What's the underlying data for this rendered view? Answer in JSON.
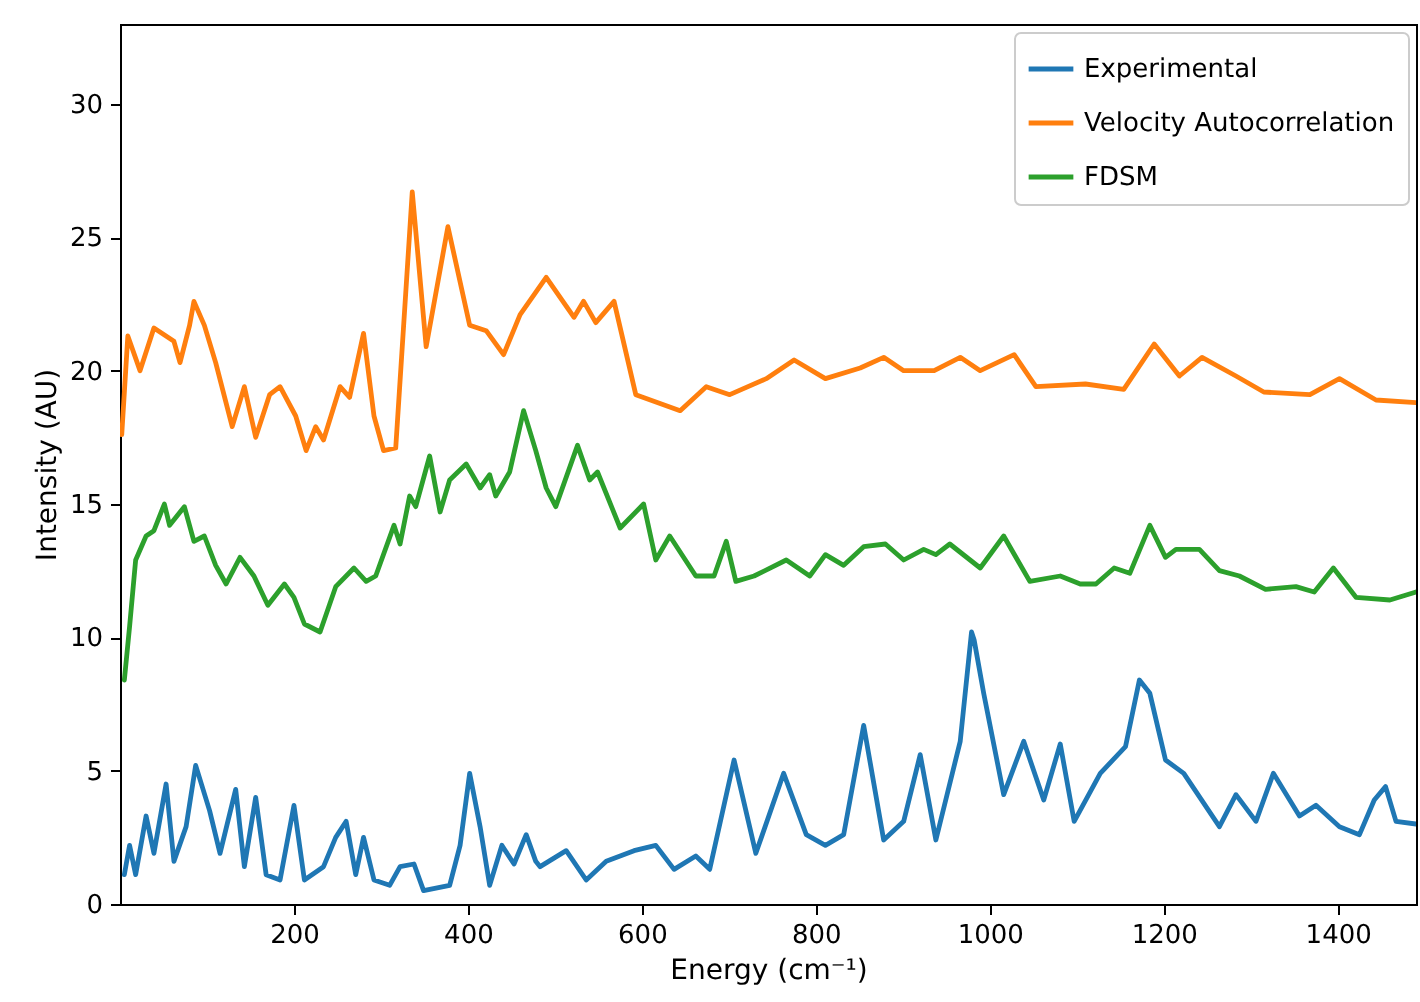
{
  "chart_data": {
    "type": "line",
    "xlabel": "Energy (cm⁻¹)",
    "ylabel": "Intensity (AU)",
    "xlim": [
      0,
      1490
    ],
    "xticks": [
      200,
      400,
      600,
      800,
      1000,
      1200,
      1400
    ],
    "ylim": [
      0,
      33
    ],
    "yticks": [
      0,
      5,
      10,
      15,
      20,
      25,
      30
    ],
    "legend": "top right",
    "grid": false,
    "line_style": "solid",
    "series": [
      {
        "name": "Experimental",
        "color": "#1f77b4",
        "x": [
          5,
          11,
          18,
          30,
          39,
          53,
          62,
          76,
          87,
          103,
          115,
          133,
          143,
          156,
          168,
          184,
          200,
          212,
          234,
          248,
          260,
          271,
          280,
          292,
          310,
          322,
          338,
          349,
          379,
          391,
          402,
          414,
          425,
          439,
          453,
          467,
          478,
          483,
          513,
          536,
          559,
          591,
          616,
          637,
          662,
          678,
          706,
          731,
          763,
          789,
          811,
          832,
          855,
          878,
          901,
          920,
          938,
          966,
          979,
          982,
          993,
          1016,
          1039,
          1062,
          1081,
          1097,
          1127,
          1156,
          1172,
          1184,
          1202,
          1223,
          1264,
          1283,
          1306,
          1326,
          1356,
          1375,
          1402,
          1425,
          1442,
          1455,
          1467,
          1490
        ],
        "values": [
          1.1,
          2.2,
          1.1,
          3.3,
          1.9,
          4.5,
          1.6,
          2.9,
          5.2,
          3.5,
          1.9,
          4.3,
          1.4,
          4.0,
          1.1,
          0.9,
          3.7,
          0.9,
          1.4,
          2.5,
          3.1,
          1.1,
          2.5,
          0.9,
          0.7,
          1.4,
          1.5,
          0.5,
          0.7,
          2.2,
          4.9,
          2.9,
          0.7,
          2.2,
          1.5,
          2.6,
          1.6,
          1.4,
          2.0,
          0.9,
          1.6,
          2.0,
          2.2,
          1.3,
          1.8,
          1.3,
          5.4,
          1.9,
          4.9,
          2.6,
          2.2,
          2.6,
          6.7,
          2.4,
          3.1,
          5.6,
          2.4,
          6.1,
          10.2,
          9.9,
          7.9,
          4.1,
          6.1,
          3.9,
          6.0,
          3.1,
          4.9,
          5.9,
          8.4,
          7.9,
          5.4,
          4.9,
          2.9,
          4.1,
          3.1,
          4.9,
          3.3,
          3.7,
          2.9,
          2.6,
          3.9,
          4.4,
          3.1,
          3.0
        ]
      },
      {
        "name": "Velocity Autocorrelation",
        "color": "#ff7f0e",
        "x": [
          2,
          9,
          23,
          39,
          62,
          69,
          80,
          85,
          97,
          110,
          129,
          143,
          156,
          172,
          184,
          202,
          214,
          225,
          234,
          253,
          264,
          280,
          292,
          303,
          317,
          336,
          352,
          377,
          402,
          421,
          441,
          460,
          490,
          522,
          533,
          547,
          568,
          593,
          644,
          674,
          701,
          743,
          775,
          811,
          851,
          878,
          901,
          936,
          966,
          989,
          1028,
          1053,
          1110,
          1154,
          1189,
          1218,
          1244,
          1283,
          1315,
          1368,
          1402,
          1444,
          1490
        ],
        "values": [
          17.6,
          21.3,
          20.0,
          21.6,
          21.1,
          20.3,
          21.7,
          22.6,
          21.7,
          20.3,
          17.9,
          19.4,
          17.5,
          19.1,
          19.4,
          18.3,
          17.0,
          17.9,
          17.4,
          19.4,
          19.0,
          21.4,
          18.3,
          17.0,
          17.1,
          26.7,
          20.9,
          25.4,
          21.7,
          21.5,
          20.6,
          22.1,
          23.5,
          22.0,
          22.6,
          21.8,
          22.6,
          19.1,
          18.5,
          19.4,
          19.1,
          19.7,
          20.4,
          19.7,
          20.1,
          20.5,
          20.0,
          20.0,
          20.5,
          20.0,
          20.6,
          19.4,
          19.5,
          19.3,
          21.0,
          19.8,
          20.5,
          19.8,
          19.2,
          19.1,
          19.7,
          18.9,
          18.8
        ]
      },
      {
        "name": "FDSM",
        "color": "#2ca02c",
        "x": [
          5,
          11,
          18,
          30,
          39,
          51,
          57,
          74,
          85,
          97,
          110,
          122,
          138,
          154,
          170,
          189,
          200,
          212,
          230,
          248,
          269,
          283,
          294,
          315,
          322,
          333,
          340,
          356,
          368,
          379,
          398,
          414,
          425,
          432,
          448,
          464,
          478,
          490,
          501,
          526,
          540,
          549,
          575,
          602,
          616,
          632,
          662,
          683,
          697,
          708,
          729,
          766,
          793,
          811,
          832,
          855,
          880,
          901,
          924,
          938,
          954,
          989,
          1016,
          1046,
          1081,
          1104,
          1122,
          1143,
          1161,
          1184,
          1202,
          1214,
          1241,
          1264,
          1287,
          1317,
          1352,
          1373,
          1395,
          1421,
          1460,
          1490
        ],
        "values": [
          8.4,
          10.4,
          12.9,
          13.8,
          14.0,
          15.0,
          14.2,
          14.9,
          13.6,
          13.8,
          12.7,
          12.0,
          13.0,
          12.3,
          11.2,
          12.0,
          11.5,
          10.5,
          10.2,
          11.9,
          12.6,
          12.1,
          12.3,
          14.2,
          13.5,
          15.3,
          14.9,
          16.8,
          14.7,
          15.9,
          16.5,
          15.6,
          16.1,
          15.3,
          16.2,
          18.5,
          17.0,
          15.6,
          14.9,
          17.2,
          15.9,
          16.2,
          14.1,
          15.0,
          12.9,
          13.8,
          12.3,
          12.3,
          13.6,
          12.1,
          12.3,
          12.9,
          12.3,
          13.1,
          12.7,
          13.4,
          13.5,
          12.9,
          13.3,
          13.1,
          13.5,
          12.6,
          13.8,
          12.1,
          12.3,
          12.0,
          12.0,
          12.6,
          12.4,
          14.2,
          13.0,
          13.3,
          13.3,
          12.5,
          12.3,
          11.8,
          11.9,
          11.7,
          12.6,
          11.5,
          11.4,
          11.7
        ]
      }
    ]
  }
}
